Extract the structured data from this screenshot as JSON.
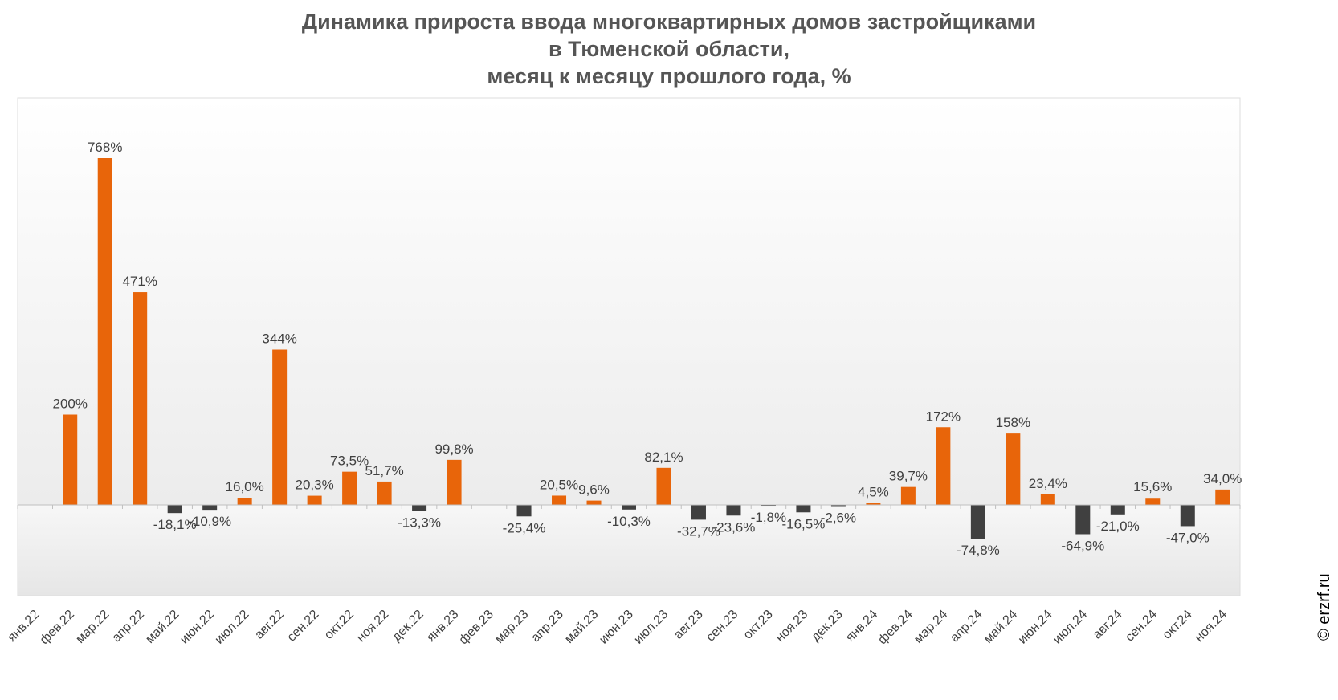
{
  "chart_data": {
    "type": "bar",
    "title_lines": [
      "Динамика прироста ввода многоквартирных домов застройщиками",
      "в Тюменской области,",
      "месяц к месяцу прошлого года, %"
    ],
    "categories": [
      "янв.22",
      "фев.22",
      "мар.22",
      "апр.22",
      "май.22",
      "июн.22",
      "июл.22",
      "авг.22",
      "сен.22",
      "окт.22",
      "ноя.22",
      "дек.22",
      "янв.23",
      "фев.23",
      "мар.23",
      "апр.23",
      "май.23",
      "июн.23",
      "июл.23",
      "авг.23",
      "сен.23",
      "окт.23",
      "ноя.23",
      "дек.23",
      "янв.24",
      "фев.24",
      "мар.24",
      "апр.24",
      "май.24",
      "июн.24",
      "июл.24",
      "авг.24",
      "сен.24",
      "окт.24",
      "ноя.24"
    ],
    "values": [
      null,
      200,
      768,
      471,
      -18.1,
      -10.9,
      16.0,
      344,
      20.3,
      73.5,
      51.7,
      -13.3,
      99.8,
      null,
      -25.4,
      20.5,
      9.6,
      -10.3,
      82.1,
      -32.7,
      -23.6,
      -1.8,
      -16.5,
      -2.6,
      4.5,
      39.7,
      172,
      -74.8,
      158,
      23.4,
      -64.9,
      -21.0,
      15.6,
      -47.0,
      34.0
    ],
    "labels": [
      "",
      "200%",
      "768%",
      "471%",
      "-18,1%",
      "-10,9%",
      "16,0%",
      "344%",
      "20,3%",
      "73,5%",
      "51,7%",
      "-13,3%",
      "99,8%",
      "",
      "-25,4%",
      "20,5%",
      "9,6%",
      "-10,3%",
      "82,1%",
      "-32,7%",
      "-23,6%",
      "-1,8%",
      "-16,5%",
      "-2,6%",
      "4,5%",
      "39,7%",
      "172%",
      "-74,8%",
      "158%",
      "23,4%",
      "-64,9%",
      "-21,0%",
      "15,6%",
      "-47,0%",
      "34,0%"
    ],
    "ylim": [
      -200,
      880
    ],
    "grid": false,
    "legend": "none",
    "colors": {
      "positive": "#E8650A",
      "negative": "#404040"
    },
    "xlabel": "",
    "ylabel": ""
  },
  "credit": "© erzrf.ru"
}
